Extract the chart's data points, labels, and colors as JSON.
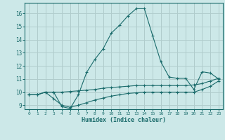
{
  "xlabel": "Humidex (Indice chaleur)",
  "background_color": "#cce8e8",
  "grid_color": "#b0cccc",
  "line_color": "#1a6b6b",
  "xlim": [
    -0.5,
    23.5
  ],
  "ylim": [
    8.7,
    16.8
  ],
  "yticks": [
    9,
    10,
    11,
    12,
    13,
    14,
    15,
    16
  ],
  "xticks": [
    0,
    1,
    2,
    3,
    4,
    5,
    6,
    7,
    8,
    9,
    10,
    11,
    12,
    13,
    14,
    15,
    16,
    17,
    18,
    19,
    20,
    21,
    22,
    23
  ],
  "curve1_x": [
    0,
    1,
    2,
    3,
    4,
    5,
    6,
    7,
    8,
    9,
    10,
    11,
    12,
    13,
    14,
    15,
    16,
    17,
    18,
    19,
    20,
    21,
    22,
    23
  ],
  "curve1_y": [
    9.8,
    9.8,
    10.0,
    10.0,
    8.9,
    8.75,
    9.8,
    11.5,
    12.5,
    13.3,
    14.5,
    15.1,
    15.8,
    16.35,
    16.35,
    14.3,
    12.3,
    11.15,
    11.05,
    11.05,
    10.2,
    11.55,
    11.45,
    11.0
  ],
  "curve2_x": [
    0,
    1,
    2,
    3,
    4,
    5,
    6,
    7,
    8,
    9,
    10,
    11,
    12,
    13,
    14,
    15,
    16,
    17,
    18,
    19,
    20,
    21,
    22,
    23
  ],
  "curve2_y": [
    9.8,
    9.8,
    10.0,
    10.0,
    10.0,
    10.05,
    10.1,
    10.15,
    10.2,
    10.3,
    10.35,
    10.4,
    10.45,
    10.5,
    10.5,
    10.5,
    10.5,
    10.5,
    10.5,
    10.5,
    10.55,
    10.65,
    10.85,
    11.05
  ],
  "curve3_x": [
    0,
    1,
    2,
    3,
    4,
    5,
    6,
    7,
    8,
    9,
    10,
    11,
    12,
    13,
    14,
    15,
    16,
    17,
    18,
    19,
    20,
    21,
    22,
    23
  ],
  "curve3_y": [
    9.8,
    9.8,
    10.0,
    9.5,
    9.0,
    8.85,
    9.0,
    9.2,
    9.4,
    9.55,
    9.7,
    9.8,
    9.9,
    9.95,
    10.0,
    10.0,
    10.0,
    10.0,
    10.0,
    10.0,
    10.0,
    10.2,
    10.45,
    10.85
  ]
}
